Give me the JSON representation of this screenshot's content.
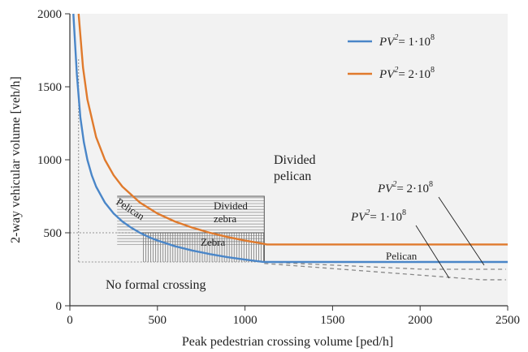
{
  "chart_data": {
    "type": "line",
    "xlabel": "Peak pedestrian crossing volume [ped/h]",
    "ylabel": "2-way vehicular volume [veh/h]",
    "xlim": [
      0,
      2500
    ],
    "ylim": [
      0,
      2000
    ],
    "xticks": [
      "0",
      "500",
      "1000",
      "1500",
      "2000",
      "2500"
    ],
    "yticks": [
      "0",
      "500",
      "1000",
      "1500",
      "2000"
    ],
    "grid": false,
    "legend_position": "top-right",
    "series": [
      {
        "name": "PV2 = 1·10^8",
        "legend_label": "PV",
        "legend_value": "= 1·10",
        "color": "#4a86c8",
        "x": [
          20,
          40,
          60,
          80,
          100,
          125,
          150,
          200,
          250,
          300,
          350,
          400,
          450,
          500,
          600,
          700,
          800,
          900,
          1000,
          1100,
          1120,
          1500,
          2000,
          2500
        ],
        "values": [
          2000,
          1585,
          1290,
          1120,
          1000,
          894,
          816,
          707,
          632,
          577,
          535,
          500,
          471,
          447,
          408,
          378,
          354,
          333,
          316,
          301,
          300,
          300,
          300,
          300
        ]
      },
      {
        "name": "PV2 = 2·10^8",
        "legend_label": "PV",
        "legend_value": "= 2·10",
        "color": "#e07a2c",
        "x": [
          50,
          75,
          100,
          150,
          200,
          250,
          300,
          400,
          500,
          600,
          700,
          800,
          900,
          1000,
          1100,
          1125,
          1500,
          2000,
          2500
        ],
        "values": [
          2000,
          1633,
          1414,
          1155,
          1000,
          894,
          816,
          707,
          632,
          577,
          535,
          500,
          471,
          447,
          426,
          420,
          420,
          420,
          420
        ]
      }
    ],
    "annotations": {
      "divided_pelican": [
        "Divided",
        "pelican"
      ],
      "divided_zebra": [
        "Divided",
        "zebra"
      ],
      "zebra": "Zebra",
      "pelican_curve": "Pelican",
      "pelican_right": "Pelican",
      "no_formal": "No formal crossing",
      "curve2_label": "PV",
      "curve2_value": "= 2·10",
      "curve1_label": "PV",
      "curve1_value": "= 1·10",
      "exp_square": "2",
      "exp_eight": "8"
    }
  }
}
